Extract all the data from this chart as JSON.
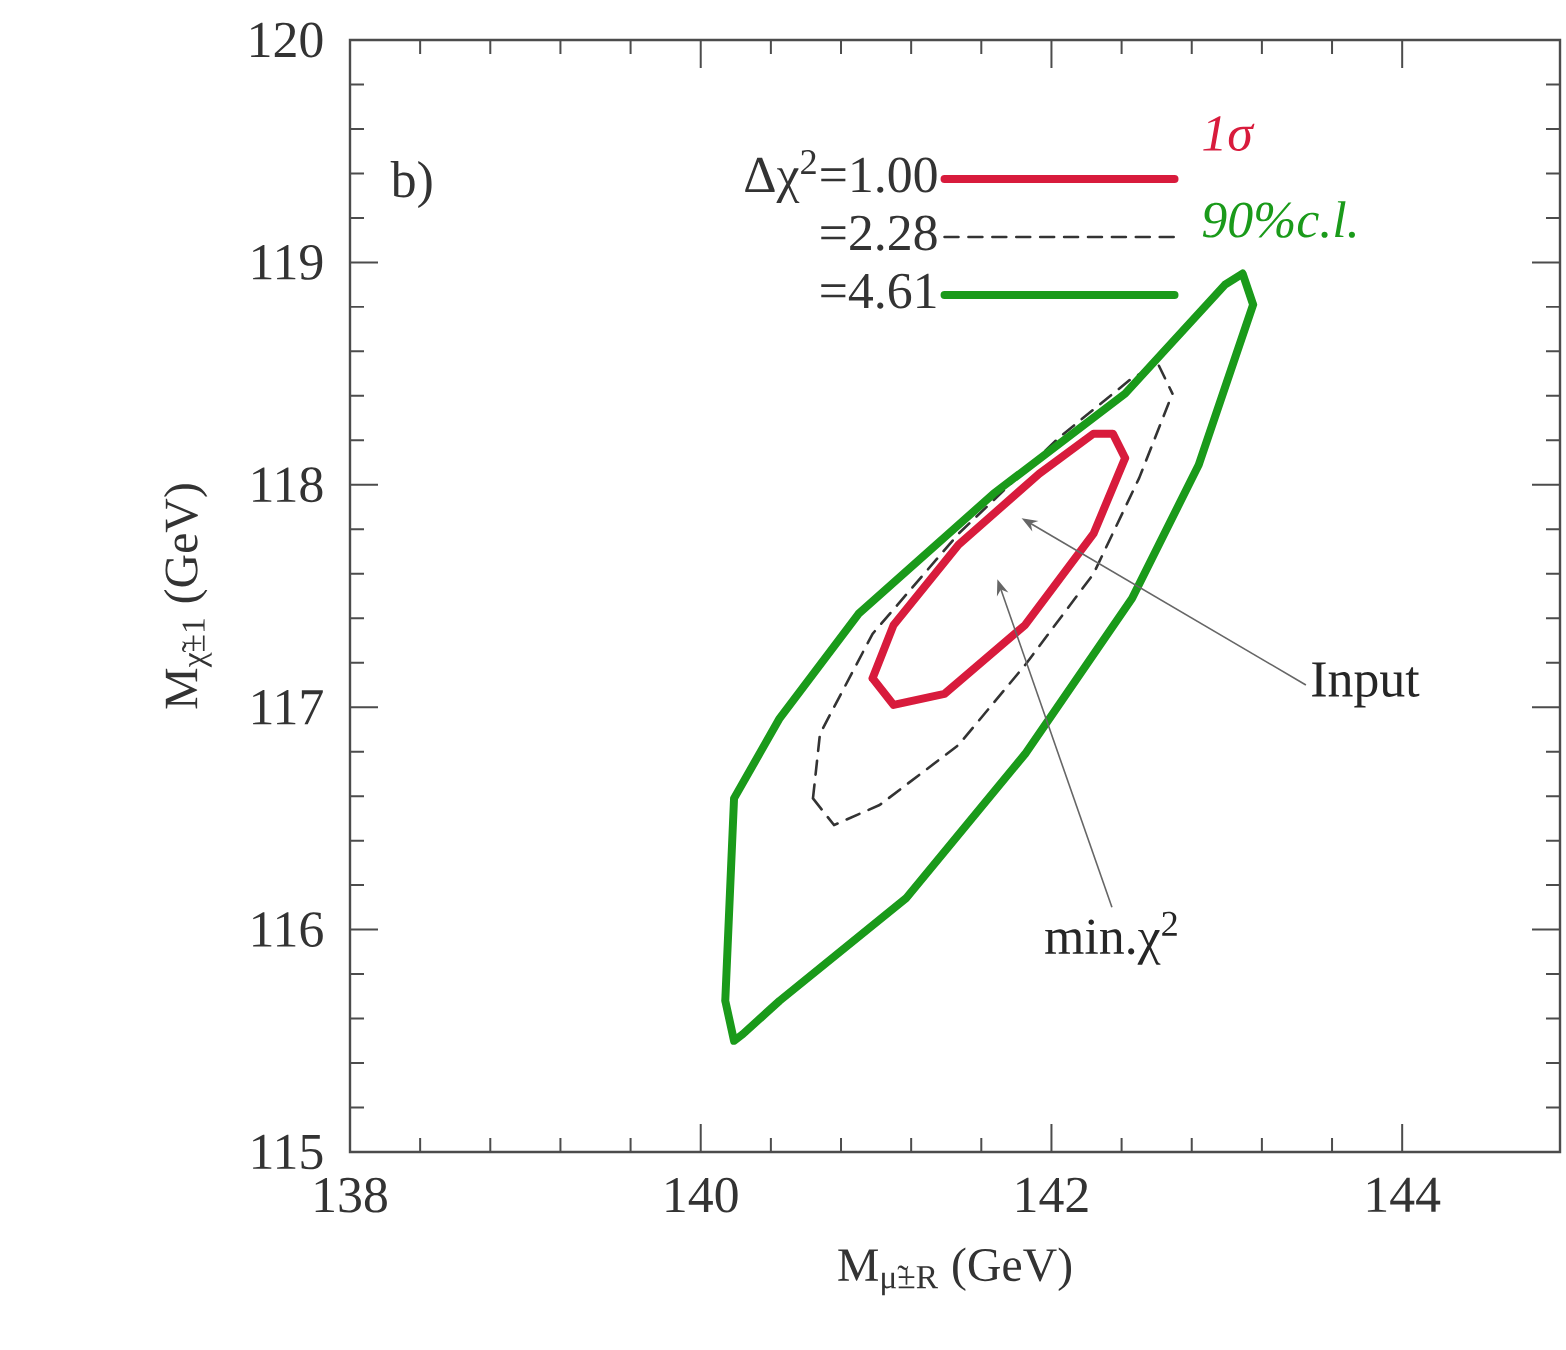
{
  "chart_data": {
    "type": "line",
    "xlabel": "M$_{μ̃±R}$ (GeV)",
    "ylabel": "M$_{χ̃±1}$ (GeV)",
    "xlim": [
      138,
      144.9
    ],
    "ylim": [
      115,
      120
    ],
    "xticks": [
      138,
      140,
      142,
      144
    ],
    "yticks": [
      115,
      116,
      117,
      118,
      119,
      120
    ],
    "legend": "top left",
    "marker": "none",
    "series": [
      {
        "name": "Δχ$^{2}$=1.00",
        "color": "#d81b3c",
        "line_style": "solid",
        "x": [
          140.98,
          141.1,
          141.47,
          141.93,
          142.24,
          142.35,
          142.42,
          null,
          140.98,
          141.1,
          141.39,
          141.85,
          142.24,
          142.42
        ],
        "values": [
          117.13,
          117.37,
          117.73,
          118.05,
          118.23,
          118.23,
          118.12,
          null,
          117.13,
          117.01,
          117.06,
          117.37,
          117.78,
          118.12
        ]
      },
      {
        "name": "=2.28",
        "color": "#333333",
        "line_style": "dashed",
        "x": [
          140.64,
          140.68,
          140.98,
          141.47,
          142.04,
          142.46,
          142.61,
          142.69,
          null,
          140.64,
          140.76,
          141.02,
          141.47,
          141.85,
          142.24,
          142.5,
          142.69
        ],
        "values": [
          116.59,
          116.88,
          117.33,
          117.78,
          118.21,
          118.48,
          118.54,
          118.41,
          null,
          116.59,
          116.47,
          116.56,
          116.83,
          117.19,
          117.6,
          118.03,
          118.41
        ]
      },
      {
        "name": "=4.61",
        "color": "#1a9a1a",
        "line_style": "solid",
        "x": [
          140.14,
          140.19,
          140.45,
          140.9,
          141.67,
          142.42,
          142.99,
          143.09,
          143.15,
          null,
          140.14,
          140.19,
          140.24,
          140.45,
          141.17,
          141.85,
          142.46,
          142.84,
          143.15
        ],
        "values": [
          115.68,
          116.59,
          116.95,
          117.42,
          117.96,
          118.41,
          118.9,
          118.95,
          118.81,
          null,
          115.68,
          115.5,
          115.53,
          115.68,
          116.14,
          116.79,
          117.49,
          118.09,
          118.81
        ]
      }
    ],
    "annotations": [
      "b)",
      "1σ",
      "90%c.l.",
      "Input",
      "min.χ$^{2}$"
    ]
  }
}
